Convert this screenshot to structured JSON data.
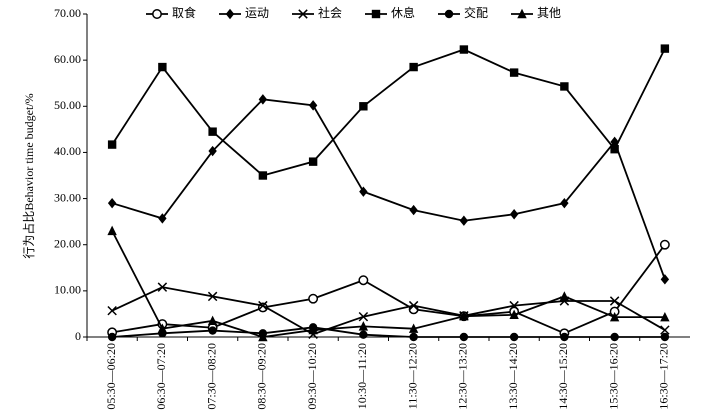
{
  "chart_data": {
    "type": "line",
    "y_label": "行为占比Behavior time budget/%",
    "categories": [
      "05:30—06:20",
      "06:30—07:20",
      "07:30—08:20",
      "08:30—09:20",
      "09:30—10:20",
      "10:30—11:20",
      "11:30—12:20",
      "12:30—13:20",
      "13:30—14:20",
      "14:30—15:20",
      "15:30—16:20",
      "16:30—17:20"
    ],
    "series": [
      {
        "name": "取食",
        "color": "#000000",
        "marker": "open-circle",
        "values": [
          1.0,
          2.8,
          2.0,
          6.4,
          8.3,
          12.3,
          6.0,
          4.5,
          5.5,
          0.8,
          5.5,
          20.0
        ]
      },
      {
        "name": "运动",
        "color": "#000000",
        "marker": "diamond",
        "values": [
          29.0,
          25.7,
          40.3,
          51.5,
          50.2,
          31.5,
          27.5,
          25.2,
          26.6,
          29.0,
          42.3,
          12.5
        ]
      },
      {
        "name": "社会",
        "color": "#000000",
        "marker": "x",
        "values": [
          5.7,
          10.8,
          8.8,
          6.8,
          0.6,
          4.4,
          6.8,
          4.6,
          6.8,
          7.8,
          7.8,
          1.5
        ]
      },
      {
        "name": "休息",
        "color": "#000000",
        "marker": "square",
        "values": [
          41.7,
          58.5,
          44.5,
          35.0,
          38.0,
          50.0,
          58.5,
          62.3,
          57.3,
          54.3,
          40.7,
          62.5
        ]
      },
      {
        "name": "交配",
        "color": "#000000",
        "marker": "circle",
        "values": [
          0,
          0.8,
          1.4,
          0.8,
          2.1,
          0.5,
          0,
          0,
          0,
          0,
          0,
          0
        ]
      },
      {
        "name": "其他",
        "color": "#000000",
        "marker": "triangle",
        "values": [
          23.0,
          1.8,
          3.5,
          0.0,
          1.5,
          2.3,
          1.8,
          4.5,
          4.8,
          8.8,
          4.3,
          4.3
        ]
      }
    ],
    "ylim": [
      0,
      70
    ],
    "yticks": [
      0,
      {
        "value": 10,
        "label": "10.00"
      },
      {
        "value": 20,
        "label": "20.00"
      },
      {
        "value": 30,
        "label": "30.00"
      },
      {
        "value": 40,
        "label": "40.00"
      },
      {
        "value": 50,
        "label": "50.00"
      },
      {
        "value": 60,
        "label": "60.00"
      },
      {
        "value": 70,
        "label": "70.00"
      }
    ],
    "grid": false,
    "legend": "top"
  }
}
